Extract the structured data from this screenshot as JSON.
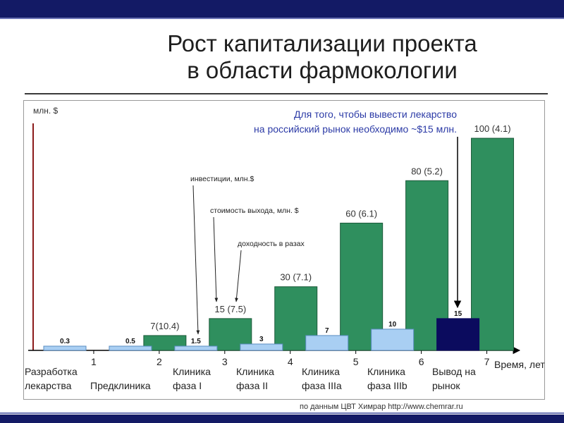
{
  "slide": {
    "title": [
      "Рост капитализации проекта",
      "в области фармокологии"
    ],
    "source": "по данным ЦВТ Химрар http://www.chemrar.ru"
  },
  "chart_data": {
    "type": "bar",
    "ylabel": "млн. $",
    "xlabel": "Время, лет",
    "x_ticks": [
      "1",
      "2",
      "3",
      "4",
      "5",
      "6",
      "7"
    ],
    "xlim": [
      0,
      7.5
    ],
    "ylim": [
      0,
      107
    ],
    "grid": false,
    "legend": "callouts-center",
    "categories": [
      [
        "Разработка",
        "лекарства"
      ],
      [
        "Предклиника"
      ],
      [
        "Клиника",
        "фаза I"
      ],
      [
        "Клиника",
        "фаза II"
      ],
      [
        "Клиника",
        "фаза IIIa"
      ],
      [
        "Клиника",
        "фаза IIIb"
      ],
      [
        "Вывод на",
        "рынок"
      ]
    ],
    "series": [
      {
        "name": "инвестиции, млн.$",
        "values": [
          0.3,
          0.5,
          1.5,
          3,
          7,
          10,
          15
        ],
        "labels": [
          "0.3",
          "0.5",
          "1.5",
          "3",
          "7",
          "10",
          "15"
        ],
        "color": "#a9cff3",
        "stroke": "#5a8cc0"
      },
      {
        "name": "стоимость выхода, млн. $",
        "values": [
          null,
          7,
          15,
          30,
          60,
          80,
          100
        ],
        "labels": [
          null,
          "7(10.4)",
          "15 (7.5)",
          "30 (7.1)",
          "60 (6.1)",
          "80 (5.2)",
          "100 (4.1)"
        ],
        "color": "#2f8f5e",
        "stroke": "#1c5a3a"
      },
      {
        "name": "доходность в разах",
        "values": [
          null,
          10.4,
          7.5,
          7.1,
          6.1,
          5.2,
          4.1
        ]
      }
    ],
    "highlight": {
      "series": 0,
      "index": 6,
      "color": "#0b0b5e"
    },
    "annotations": {
      "market_note": [
        "Для того, чтобы вывести лекарство",
        "на российский рынок необходимо ~$15 млн."
      ]
    }
  }
}
